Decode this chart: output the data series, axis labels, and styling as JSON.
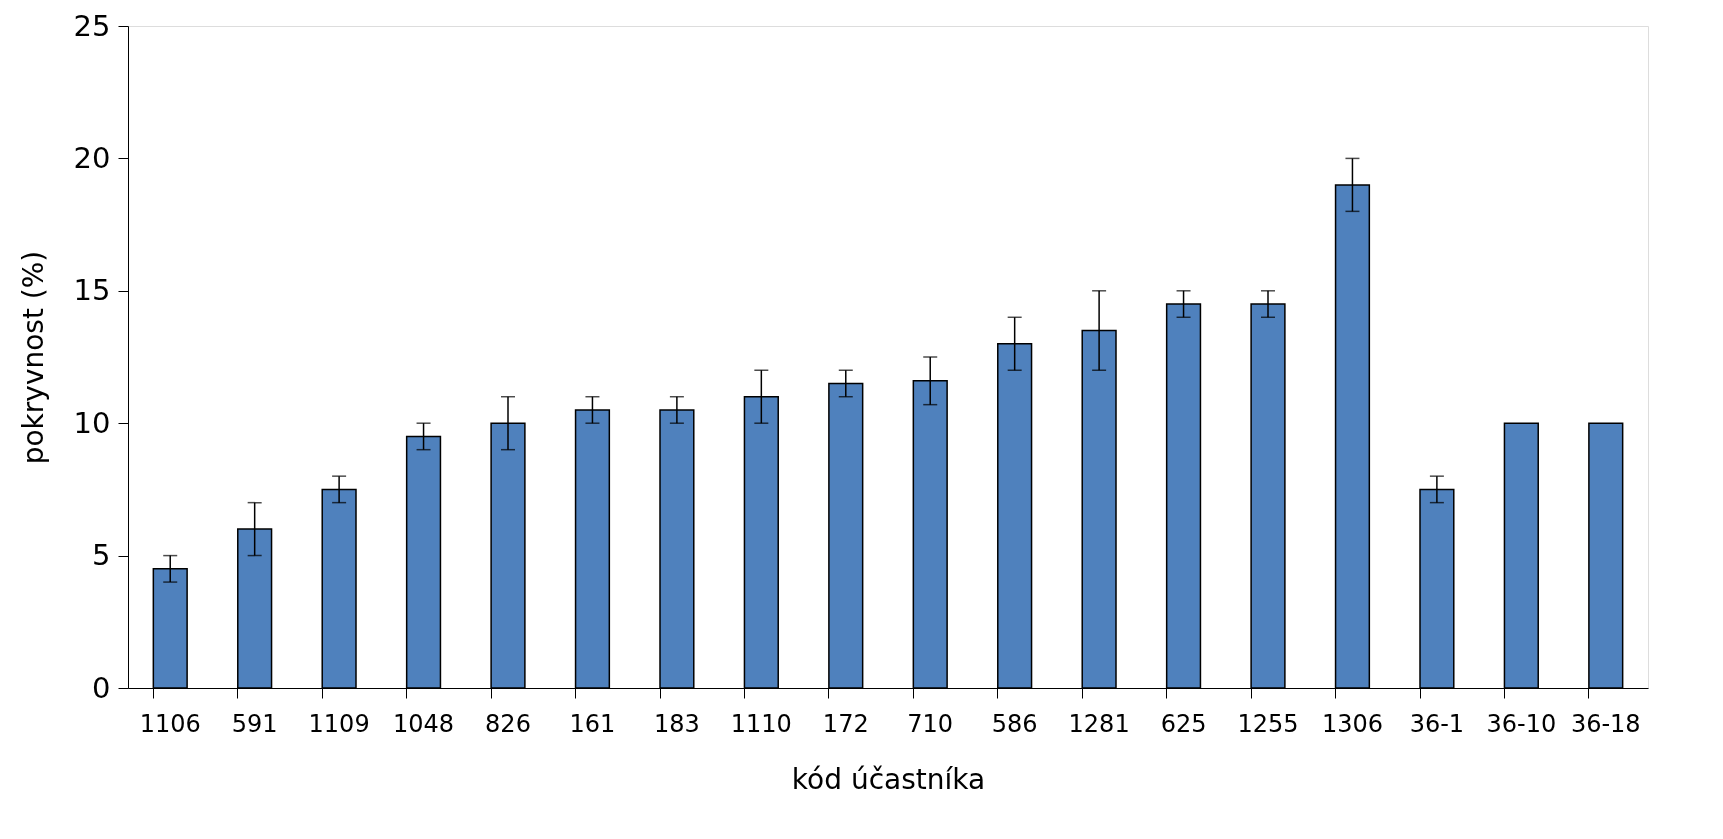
{
  "chart_data": {
    "type": "bar",
    "xlabel": "kód účastníka",
    "ylabel": "pokryvnost (%)",
    "categories": [
      "1106",
      "591",
      "1109",
      "1048",
      "826",
      "161",
      "183",
      "1110",
      "172",
      "710",
      "586",
      "1281",
      "625",
      "1255",
      "1306",
      "36-1",
      "36-10",
      "36-18"
    ],
    "values": [
      4.5,
      6,
      7.5,
      9.5,
      10,
      10.5,
      10.5,
      11,
      11.5,
      11.6,
      13,
      13.5,
      14.5,
      14.5,
      19,
      7.5,
      10,
      10
    ],
    "errors": [
      0.5,
      1,
      0.5,
      0.5,
      1,
      0.5,
      0.5,
      1,
      0.5,
      0.9,
      1,
      1.5,
      0.5,
      0.5,
      1,
      0.5,
      null,
      null
    ],
    "color": "#4f81bd",
    "ylim": [
      0,
      25
    ],
    "yticks": [
      0,
      5,
      10,
      15,
      20,
      25
    ],
    "grid": false
  }
}
